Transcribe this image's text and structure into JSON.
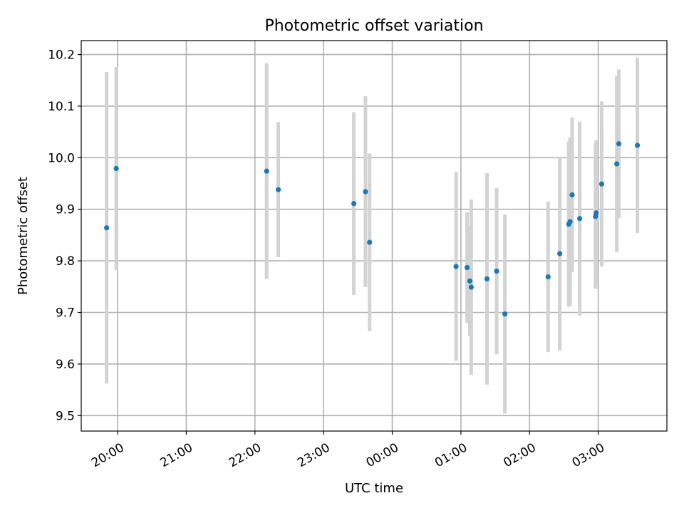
{
  "chart_data": {
    "type": "scatter",
    "title": "Photometric offset variation",
    "xlabel": "UTC time",
    "ylabel": "Photometric offset",
    "grid": true,
    "x_axis": {
      "unit": "hours",
      "range": [
        -0.53,
        8.0
      ],
      "ticks": [
        {
          "value": 0,
          "label": "20:00"
        },
        {
          "value": 1,
          "label": "21:00"
        },
        {
          "value": 2,
          "label": "22:00"
        },
        {
          "value": 3,
          "label": "23:00"
        },
        {
          "value": 4,
          "label": "00:00"
        },
        {
          "value": 5,
          "label": "01:00"
        },
        {
          "value": 6,
          "label": "02:00"
        },
        {
          "value": 7,
          "label": "03:00"
        }
      ]
    },
    "y_axis": {
      "range": [
        9.47,
        10.227
      ],
      "ticks": [
        {
          "value": 9.5,
          "label": "9.5"
        },
        {
          "value": 9.6,
          "label": "9.6"
        },
        {
          "value": 9.7,
          "label": "9.7"
        },
        {
          "value": 9.8,
          "label": "9.8"
        },
        {
          "value": 9.9,
          "label": "9.9"
        },
        {
          "value": 10.0,
          "label": "10.0"
        },
        {
          "value": 10.1,
          "label": "10.1"
        },
        {
          "value": 10.2,
          "label": "10.2"
        }
      ]
    },
    "colors": {
      "point": "#1f77b4",
      "errorbar": "#d3d3d3"
    },
    "points": [
      {
        "x": -0.16,
        "y": 9.864,
        "yerr": 0.302
      },
      {
        "x": -0.02,
        "y": 9.979,
        "yerr": 0.197
      },
      {
        "x": 2.17,
        "y": 9.974,
        "yerr": 0.209
      },
      {
        "x": 2.34,
        "y": 9.938,
        "yerr": 0.131
      },
      {
        "x": 3.44,
        "y": 9.911,
        "yerr": 0.177
      },
      {
        "x": 3.61,
        "y": 9.934,
        "yerr": 0.185
      },
      {
        "x": 3.67,
        "y": 9.836,
        "yerr": 0.172
      },
      {
        "x": 4.93,
        "y": 9.789,
        "yerr": 0.183
      },
      {
        "x": 5.09,
        "y": 9.787,
        "yerr": 0.107
      },
      {
        "x": 5.13,
        "y": 9.761,
        "yerr": 0.107
      },
      {
        "x": 5.15,
        "y": 9.749,
        "yerr": 0.17
      },
      {
        "x": 5.38,
        "y": 9.765,
        "yerr": 0.205
      },
      {
        "x": 5.52,
        "y": 9.78,
        "yerr": 0.161
      },
      {
        "x": 5.64,
        "y": 9.697,
        "yerr": 0.193
      },
      {
        "x": 6.27,
        "y": 9.769,
        "yerr": 0.146
      },
      {
        "x": 6.44,
        "y": 9.814,
        "yerr": 0.188
      },
      {
        "x": 6.57,
        "y": 9.871,
        "yerr": 0.16
      },
      {
        "x": 6.59,
        "y": 9.876,
        "yerr": 0.163
      },
      {
        "x": 6.62,
        "y": 9.928,
        "yerr": 0.15
      },
      {
        "x": 6.73,
        "y": 9.882,
        "yerr": 0.188
      },
      {
        "x": 6.96,
        "y": 9.886,
        "yerr": 0.14
      },
      {
        "x": 6.97,
        "y": 9.893,
        "yerr": 0.141
      },
      {
        "x": 7.05,
        "y": 9.949,
        "yerr": 0.16
      },
      {
        "x": 7.27,
        "y": 9.988,
        "yerr": 0.171
      },
      {
        "x": 7.3,
        "y": 10.027,
        "yerr": 0.144
      },
      {
        "x": 7.57,
        "y": 10.024,
        "yerr": 0.17
      }
    ]
  }
}
